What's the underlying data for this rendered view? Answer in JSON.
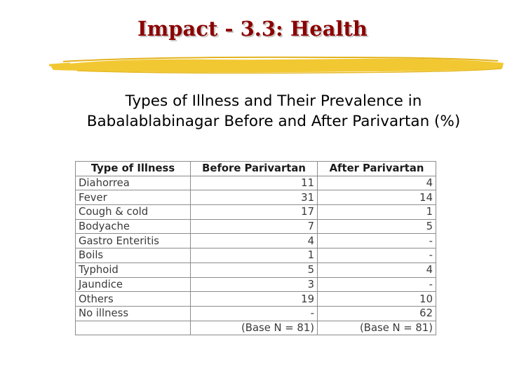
{
  "slide": {
    "title": "Impact - 3.3: Health",
    "subtitle_line1": "Types of Illness and Their Prevalence in",
    "subtitle_line2": "Babalablabinagar Before and After Parivartan (%)"
  },
  "colors": {
    "title": "#8b0000",
    "brush": "#f2c832"
  },
  "table": {
    "headers": [
      "Type of Illness",
      "Before Parivartan",
      "After Parivartan"
    ],
    "rows": [
      [
        "Diahorrea",
        "11",
        "4"
      ],
      [
        "Fever",
        "31",
        "14"
      ],
      [
        "Cough & cold",
        "17",
        "1"
      ],
      [
        "Bodyache",
        "7",
        "5"
      ],
      [
        "Gastro Enteritis",
        "4",
        "-"
      ],
      [
        "Boils",
        "1",
        "-"
      ],
      [
        "Typhoid",
        "5",
        "4"
      ],
      [
        "Jaundice",
        "3",
        "-"
      ],
      [
        "Others",
        "19",
        "10"
      ],
      [
        "No illness",
        "-",
        "62"
      ]
    ],
    "footer": [
      "",
      "(Base N = 81)",
      "(Base N = 81)"
    ]
  }
}
